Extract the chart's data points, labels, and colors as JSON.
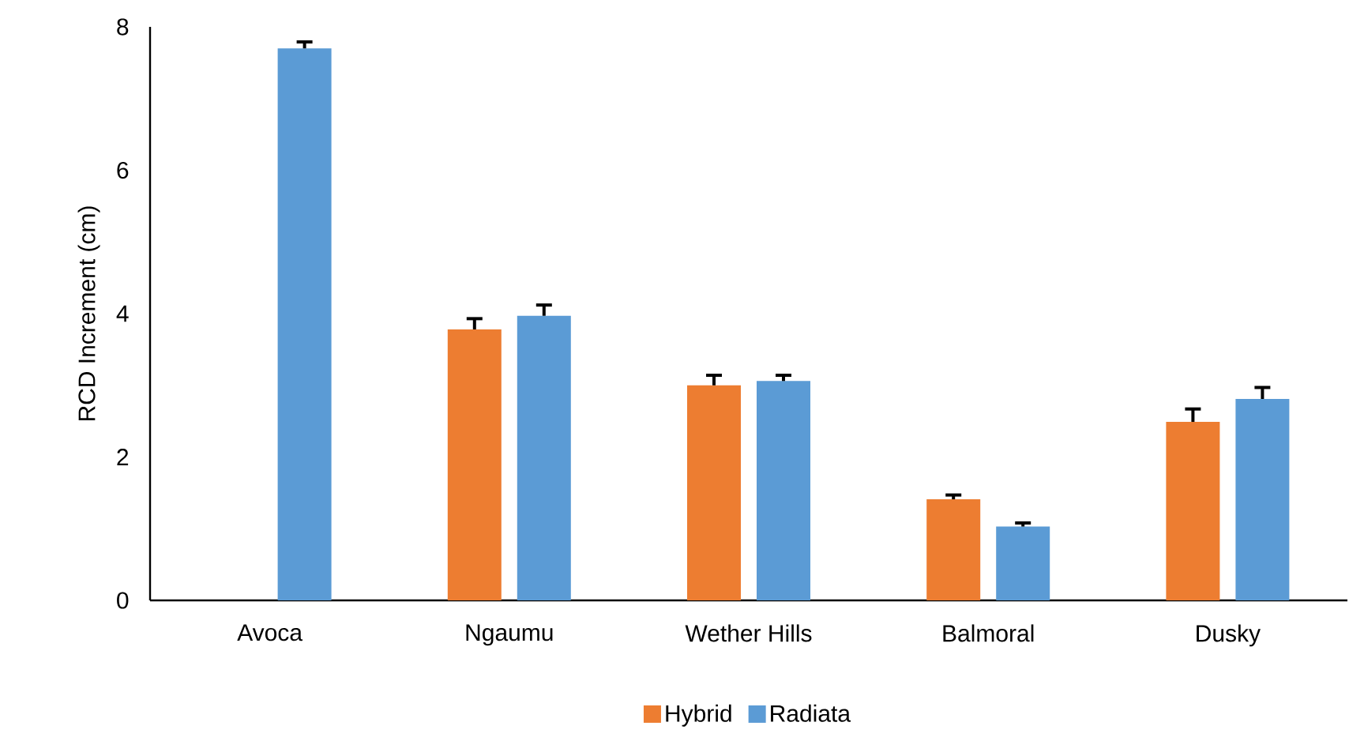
{
  "chart_data": {
    "type": "bar",
    "ylabel": "RCD Increment (cm)",
    "categories": [
      "Avoca",
      "Ngaumu",
      "Wether Hills",
      "Balmoral",
      "Dusky"
    ],
    "series": [
      {
        "name": "Hybrid",
        "color": "#ed7d31",
        "values": [
          null,
          3.78,
          3.0,
          1.41,
          2.49
        ],
        "errors": [
          null,
          0.15,
          0.14,
          0.06,
          0.18
        ]
      },
      {
        "name": "Radiata",
        "color": "#5b9bd5",
        "values": [
          7.7,
          3.97,
          3.06,
          1.03,
          2.81
        ],
        "errors": [
          0.09,
          0.15,
          0.08,
          0.05,
          0.16
        ]
      }
    ],
    "ylim": [
      0,
      8
    ],
    "yticks": [
      0,
      2,
      4,
      6,
      8
    ],
    "legend": "bottom"
  }
}
